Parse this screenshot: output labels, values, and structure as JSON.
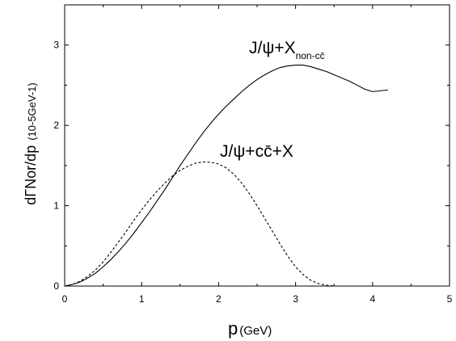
{
  "chart_data": {
    "type": "line",
    "title": "",
    "xlabel": "p",
    "xlabel_unit": "(GeV)",
    "ylabel": "dΓNor/dp",
    "ylabel_unit": "(10-5GeV-1)",
    "xlim": [
      0,
      5
    ],
    "ylim": [
      0,
      3.5
    ],
    "xticks": [
      0,
      1,
      2,
      3,
      4,
      5
    ],
    "yticks": [
      0,
      1,
      2,
      3
    ],
    "grid": false,
    "legend": "none",
    "series": [
      {
        "name": "J/ψ+Xnon-cc̄",
        "label_main": "J/ψ+X",
        "label_sub": "non-cc̄",
        "style": "solid",
        "color": "#000000",
        "x": [
          0,
          0.1,
          0.2,
          0.3,
          0.4,
          0.5,
          0.6,
          0.7,
          0.8,
          0.9,
          1.0,
          1.1,
          1.2,
          1.3,
          1.4,
          1.5,
          1.6,
          1.7,
          1.8,
          1.9,
          2.0,
          2.1,
          2.2,
          2.3,
          2.4,
          2.5,
          2.6,
          2.7,
          2.8,
          2.9,
          3.0,
          3.1,
          3.2,
          3.3,
          3.4,
          3.5,
          3.6,
          3.7,
          3.8,
          3.9,
          4.0,
          4.1,
          4.2
        ],
        "y": [
          0,
          0.02,
          0.05,
          0.1,
          0.16,
          0.24,
          0.33,
          0.43,
          0.54,
          0.66,
          0.79,
          0.92,
          1.06,
          1.2,
          1.35,
          1.5,
          1.64,
          1.78,
          1.91,
          2.03,
          2.14,
          2.24,
          2.33,
          2.42,
          2.5,
          2.57,
          2.63,
          2.68,
          2.72,
          2.74,
          2.75,
          2.75,
          2.73,
          2.7,
          2.67,
          2.63,
          2.59,
          2.55,
          2.5,
          2.45,
          2.42,
          2.43,
          2.44
        ]
      },
      {
        "name": "J/ψ+cc̄+X",
        "label_main": "J/ψ+cc̄+X",
        "style": "dashed",
        "color": "#000000",
        "x": [
          0,
          0.1,
          0.2,
          0.3,
          0.4,
          0.5,
          0.6,
          0.7,
          0.8,
          0.9,
          1.0,
          1.1,
          1.2,
          1.3,
          1.4,
          1.5,
          1.6,
          1.7,
          1.8,
          1.9,
          2.0,
          2.1,
          2.2,
          2.3,
          2.4,
          2.5,
          2.6,
          2.7,
          2.8,
          2.9,
          3.0,
          3.1,
          3.2,
          3.3,
          3.4,
          3.5,
          3.55
        ],
        "y": [
          0,
          0.02,
          0.06,
          0.12,
          0.2,
          0.3,
          0.42,
          0.55,
          0.68,
          0.82,
          0.95,
          1.07,
          1.18,
          1.28,
          1.37,
          1.44,
          1.49,
          1.53,
          1.545,
          1.54,
          1.52,
          1.47,
          1.39,
          1.28,
          1.15,
          1.0,
          0.84,
          0.68,
          0.52,
          0.37,
          0.24,
          0.14,
          0.07,
          0.03,
          0.01,
          0.0,
          0.0
        ]
      }
    ]
  }
}
